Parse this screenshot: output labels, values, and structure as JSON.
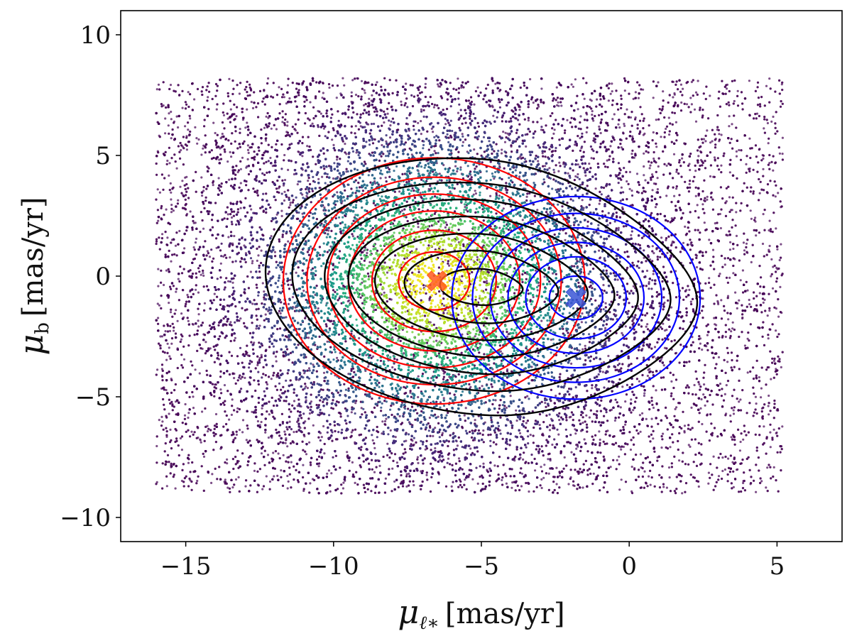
{
  "chart_data": {
    "type": "scatter",
    "title": "",
    "xlabel": {
      "sym": "μ",
      "sub": "ℓ∗",
      "units": "[mas/yr]"
    },
    "ylabel": {
      "sym": "μ",
      "sub": "b",
      "units": "[mas/yr]"
    },
    "xlim": [
      -17.2,
      7.2
    ],
    "ylim": [
      -11,
      11
    ],
    "xticks": [
      -15,
      -10,
      -5,
      0,
      5
    ],
    "yticks": [
      10,
      5,
      0,
      -5,
      -10
    ],
    "xtick_labels": [
      "−15",
      "−10",
      "−5",
      "0",
      "5"
    ],
    "ytick_labels": [
      "10",
      "5",
      "0",
      "−5",
      "−10"
    ],
    "scatter_extent": {
      "x": [
        -16,
        5.2
      ],
      "y": [
        -9,
        8.2
      ]
    },
    "density_core": {
      "mean": [
        -6.5,
        -0.3
      ],
      "sigma": [
        4.0,
        4.2
      ]
    },
    "grid": false,
    "colormap": "viridis",
    "components": [
      {
        "color": "#ff0000",
        "center": [
          -6.6,
          -0.2
        ],
        "rx": [
          1.2,
          2.1,
          2.9,
          3.6,
          4.3,
          5.1
        ],
        "ry": [
          1.2,
          2.1,
          2.9,
          3.6,
          4.3,
          5.1
        ]
      },
      {
        "color": "#0000ff",
        "center": [
          -1.8,
          -0.9
        ],
        "rx": [
          0.9,
          1.7,
          2.3,
          2.9,
          3.5,
          4.2
        ],
        "ry": [
          0.9,
          1.7,
          2.3,
          2.9,
          3.5,
          4.2
        ]
      }
    ],
    "combined_contours": {
      "color": "#000000",
      "center": [
        -5.0,
        -0.45
      ],
      "levels": [
        {
          "a": 1.4,
          "b": 0.75
        },
        {
          "a": 2.6,
          "b": 1.5
        },
        {
          "a": 3.6,
          "b": 2.2
        },
        {
          "a": 4.5,
          "b": 2.9
        },
        {
          "a": 5.3,
          "b": 3.6
        },
        {
          "a": 6.4,
          "b": 4.3
        },
        {
          "a": 7.3,
          "b": 5.3
        }
      ]
    },
    "markers": [
      {
        "x": -6.5,
        "y": -0.2,
        "color": "#ff5a1f",
        "symbol": "X"
      },
      {
        "x": -1.8,
        "y": -0.9,
        "color": "#3a56d6",
        "symbol": "X"
      }
    ]
  }
}
